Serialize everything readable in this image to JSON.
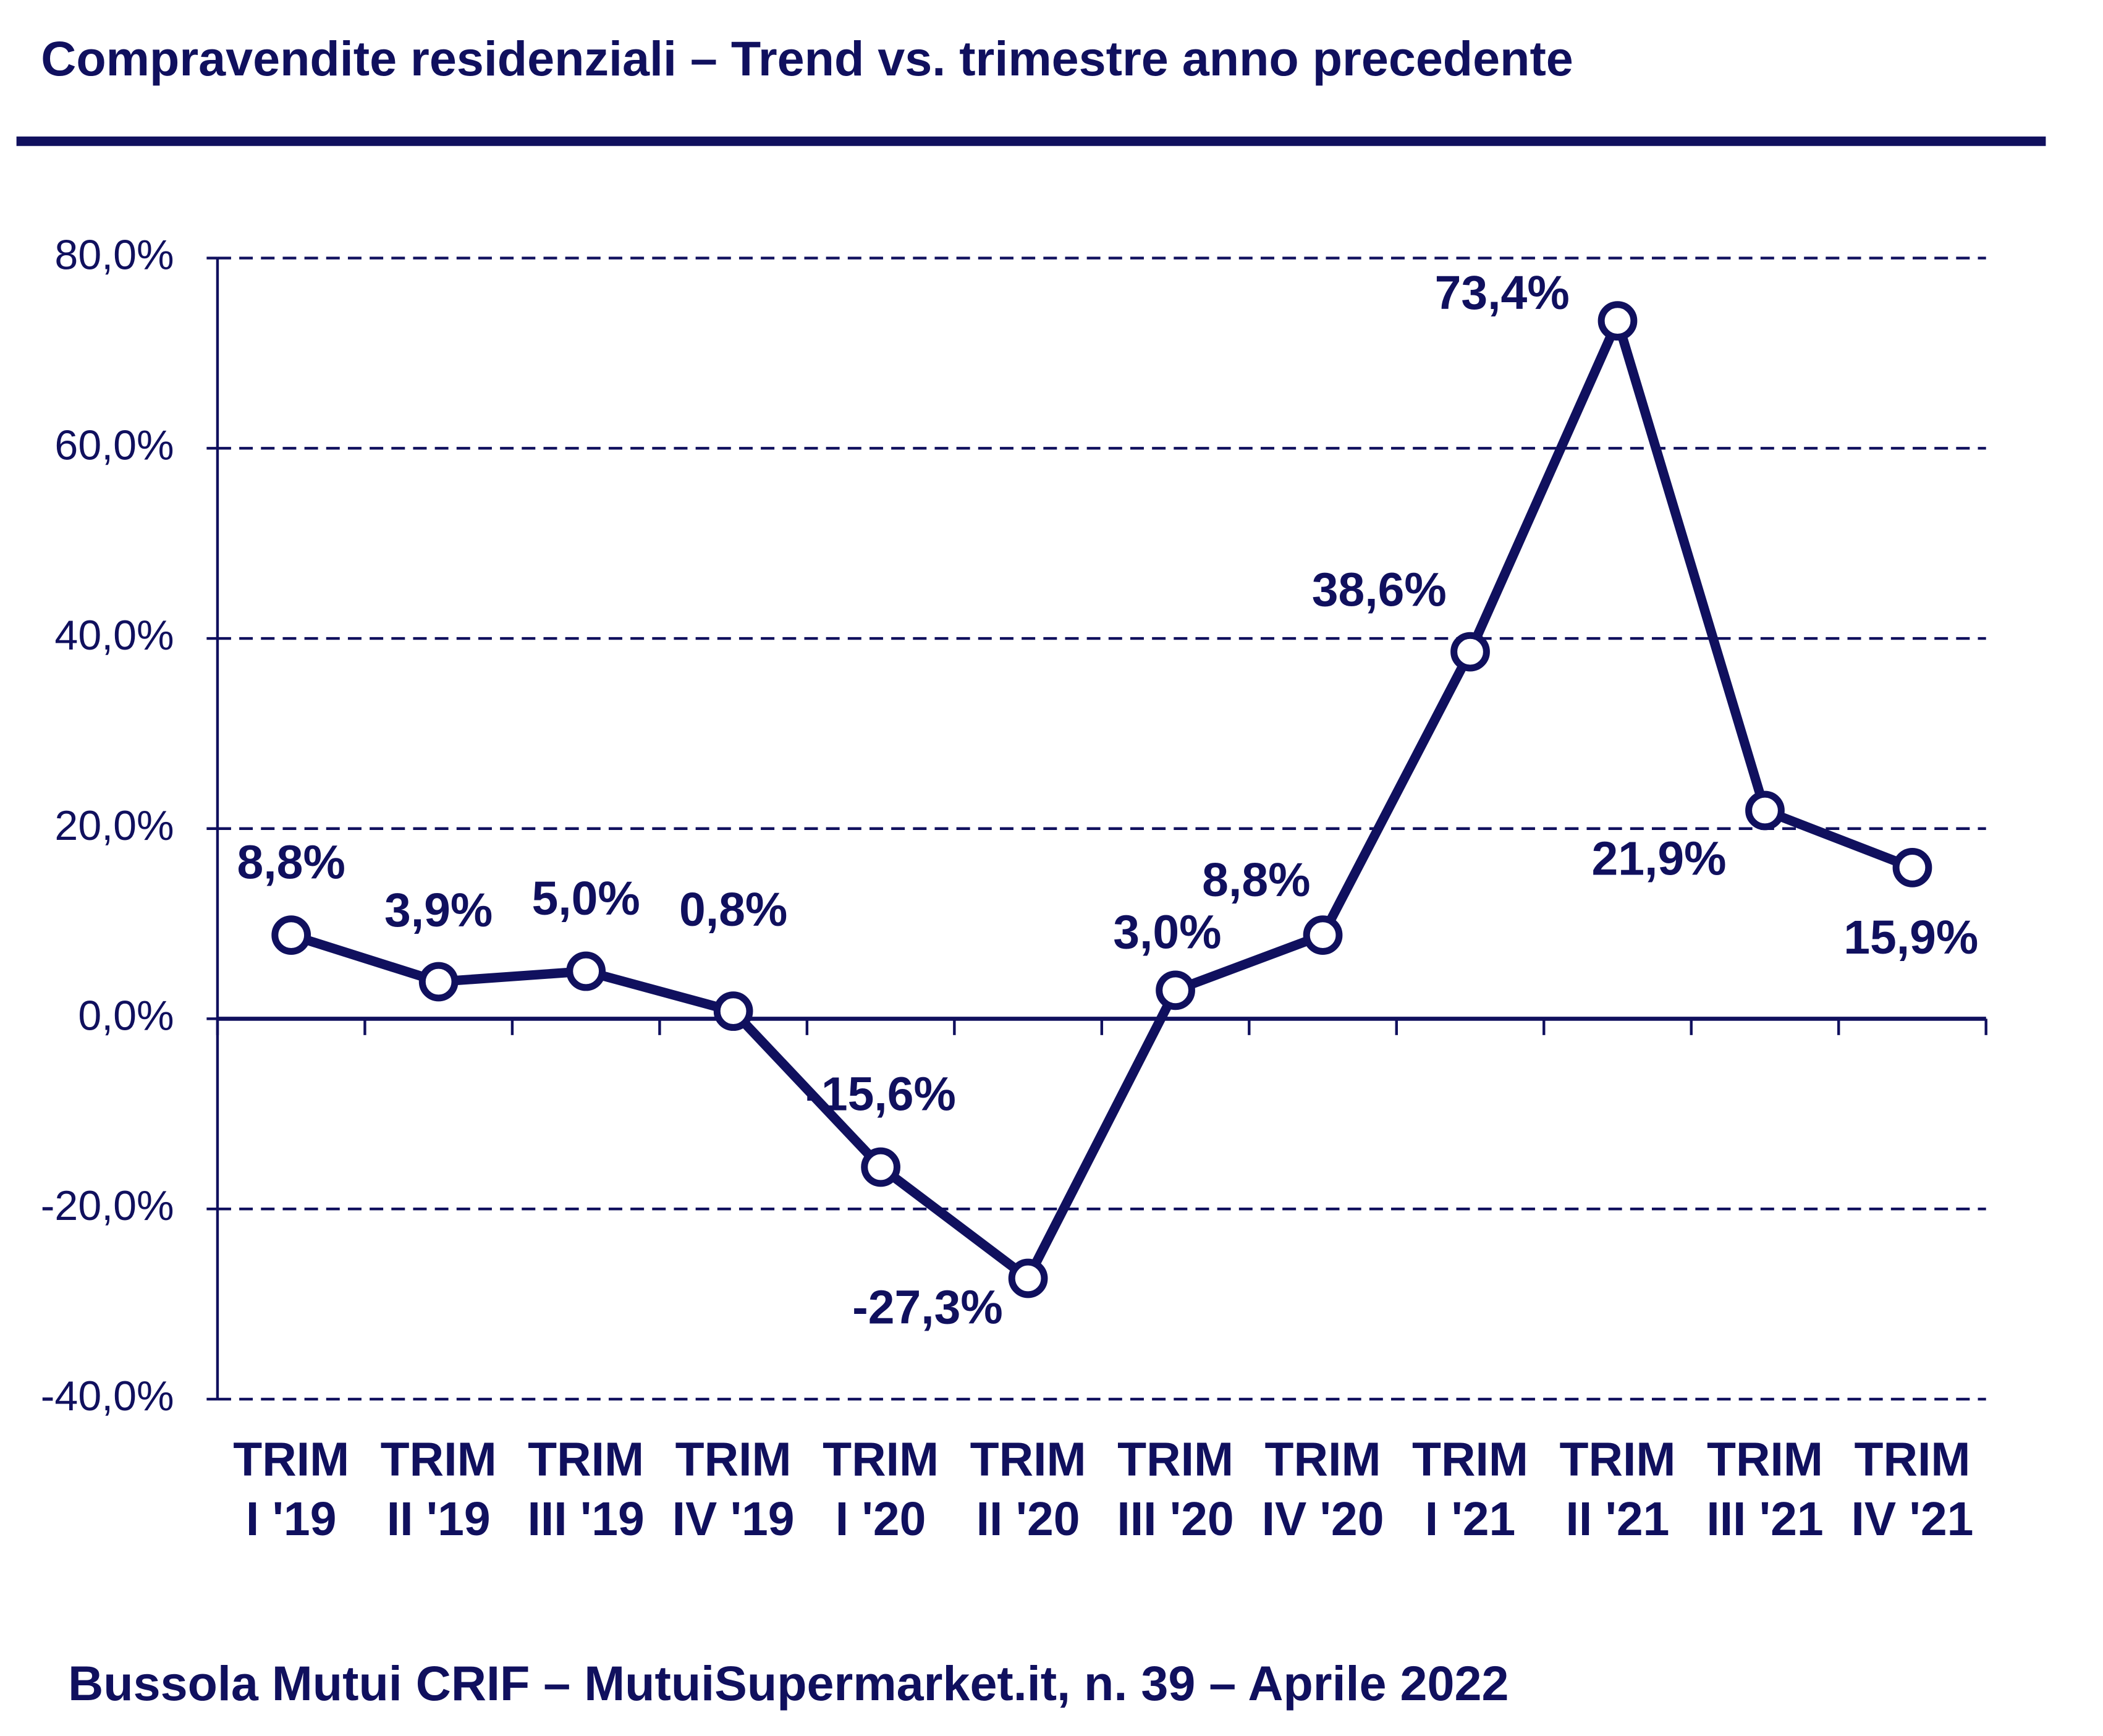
{
  "chart_data": {
    "type": "line",
    "title": "Compravendite residenziali – Trend vs. trimestre anno precedente",
    "source": "Bussola Mutui CRIF – MutuiSupermarket.it, n. 39 – Aprile 2022",
    "categories": [
      [
        "TRIM",
        "I '19"
      ],
      [
        "TRIM",
        "II '19"
      ],
      [
        "TRIM",
        "III '19"
      ],
      [
        "TRIM",
        "IV '19"
      ],
      [
        "TRIM",
        "I '20"
      ],
      [
        "TRIM",
        "II '20"
      ],
      [
        "TRIM",
        "III '20"
      ],
      [
        "TRIM",
        "IV '20"
      ],
      [
        "TRIM",
        "I '21"
      ],
      [
        "TRIM",
        "II '21"
      ],
      [
        "TRIM",
        "III '21"
      ],
      [
        "TRIM",
        "IV '21"
      ]
    ],
    "values": [
      8.8,
      3.9,
      5.0,
      0.8,
      -15.6,
      -27.3,
      3.0,
      8.8,
      38.6,
      73.4,
      21.9,
      15.9
    ],
    "value_labels": [
      "8,8%",
      "3,9%",
      "5,0%",
      "0,8%",
      "-15,6%",
      "-27,3%",
      "3,0%",
      "8,8%",
      "38,6%",
      "73,4%",
      "21,9%",
      "15,9%"
    ],
    "color": "#10105e",
    "ylim": [
      -40,
      80
    ],
    "yticks": [
      {
        "value": -40,
        "label": "-40,0%"
      },
      {
        "value": -20,
        "label": "-20,0%"
      },
      {
        "value": 0,
        "label": "0,0%"
      },
      {
        "value": 20,
        "label": "20,0%"
      },
      {
        "value": 40,
        "label": "40,0%"
      },
      {
        "value": 60,
        "label": "60,0%"
      },
      {
        "value": 80,
        "label": "80,0%"
      }
    ],
    "grid": true
  }
}
